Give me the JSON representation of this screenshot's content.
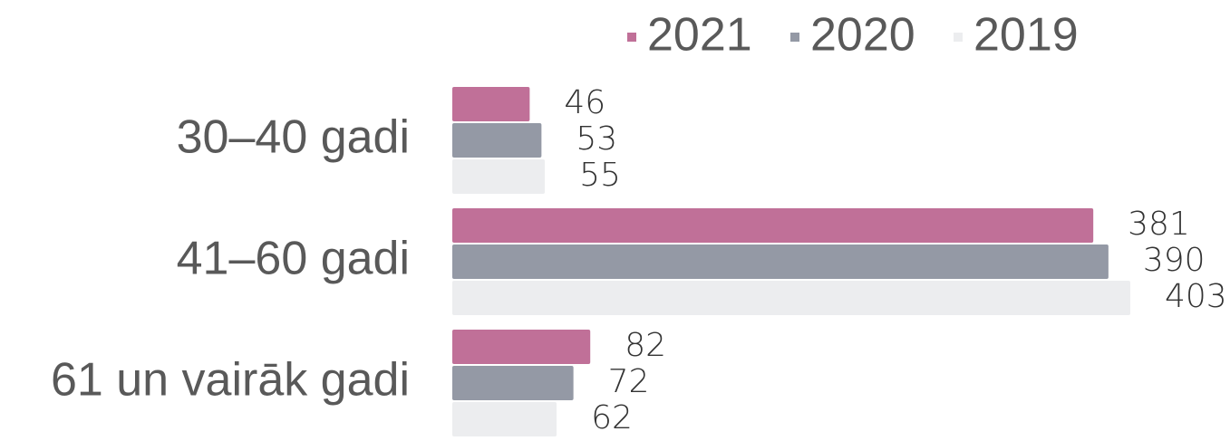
{
  "chart_data": {
    "type": "bar",
    "orientation": "horizontal",
    "categories": [
      "30–40 gadi",
      "41–60 gadi",
      "61 un vairāk gadi"
    ],
    "series": [
      {
        "name": "2021",
        "color": "#c07098",
        "values": [
          46,
          381,
          82
        ]
      },
      {
        "name": "2020",
        "color": "#9499a5",
        "values": [
          53,
          390,
          72
        ]
      },
      {
        "name": "2019",
        "color": "#ecedef",
        "values": [
          55,
          403,
          62
        ]
      }
    ],
    "legend": "top"
  }
}
